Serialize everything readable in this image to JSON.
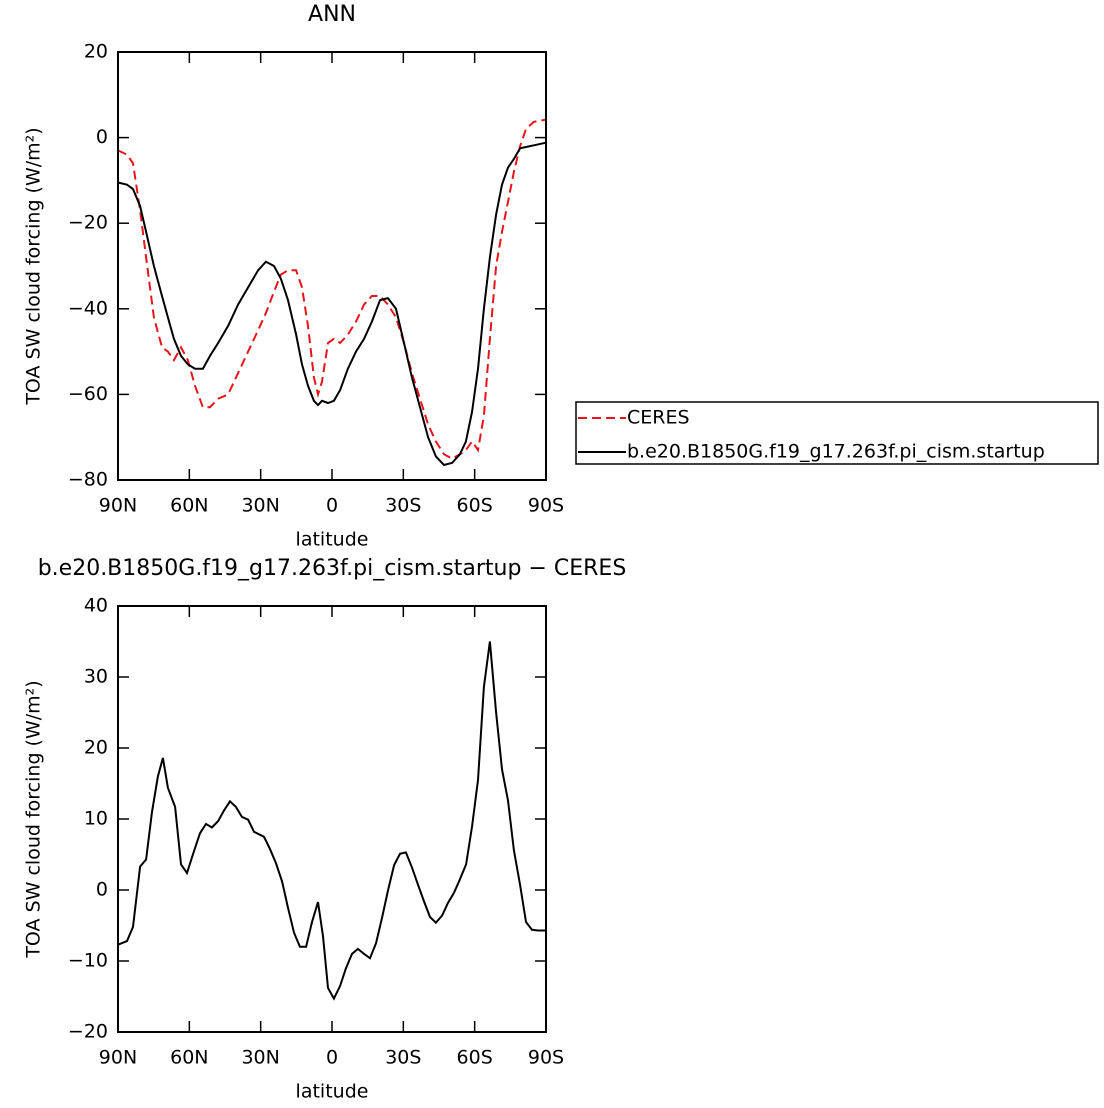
{
  "chart_data": [
    {
      "type": "line",
      "title": "ANN",
      "x_label": "latitude",
      "y_label": "TOA SW cloud forcing (W/m²)",
      "xlim": [
        90,
        -90
      ],
      "xticks": [
        {
          "value": 90,
          "label": "90N"
        },
        {
          "value": 60,
          "label": "60N"
        },
        {
          "value": 30,
          "label": "30N"
        },
        0,
        {
          "value": -30,
          "label": "30S"
        },
        {
          "value": -60,
          "label": "60S"
        },
        {
          "value": -90,
          "label": "90S"
        }
      ],
      "ylim": [
        -80,
        20
      ],
      "yticks": [
        {
          "value": -80,
          "label": "−80"
        },
        {
          "value": -60,
          "label": "−60"
        },
        {
          "value": -40,
          "label": "−40"
        },
        {
          "value": -20,
          "label": "−20"
        },
        0,
        20
      ],
      "legend": "outside right",
      "x": [
        90,
        86.2,
        83.7,
        80.7,
        78.2,
        74.9,
        71.5,
        69,
        66.5,
        63.5,
        60.6,
        57.6,
        54.3,
        51.3,
        47.9,
        43.7,
        39.5,
        35.3,
        31.1,
        27.8,
        24.4,
        21.5,
        18.5,
        15.1,
        12.6,
        10.1,
        7.6,
        5.9,
        4.2,
        1.7,
        -0.8,
        -3.4,
        -6.7,
        -10.1,
        -13.5,
        -16.8,
        -20.2,
        -23.5,
        -26.9,
        -30.3,
        -33.6,
        -37,
        -40.4,
        -43.7,
        -47.1,
        -50.5,
        -53.8,
        -56.3,
        -58.9,
        -61.4,
        -63.9,
        -66.4,
        -69,
        -71.5,
        -74,
        -76.5,
        -79.1,
        -81.6,
        -84.9,
        -90
      ],
      "series": [
        {
          "name": "CERES",
          "color": "#e8141a",
          "line_style": "dashed",
          "values": [
            -3,
            -4,
            -6,
            -17,
            -28,
            -42,
            -49,
            -50,
            -52,
            -49,
            -52,
            -58,
            -63,
            -63,
            -61,
            -60,
            -55,
            -50,
            -45,
            -41,
            -36,
            -32,
            -31,
            -31,
            -35,
            -44,
            -56,
            -60,
            -57,
            -48,
            -47,
            -48,
            -46,
            -43,
            -39,
            -37,
            -37,
            -39,
            -42,
            -48,
            -55,
            -61,
            -67,
            -71,
            -74,
            -75,
            -74,
            -73,
            -71,
            -73,
            -65,
            -47,
            -30,
            -22,
            -15,
            -8,
            -2,
            2,
            3.7,
            4.2
          ]
        },
        {
          "name": "b.e20.B1850G.f19_g17.263f.pi_cism.startup",
          "color": "#000000",
          "line_style": "solid",
          "values": [
            -10.5,
            -11,
            -12,
            -16,
            -22,
            -30,
            -37,
            -42,
            -47,
            -51,
            -53,
            -54,
            -54,
            -51,
            -48,
            -44,
            -39,
            -35,
            -31,
            -29,
            -30,
            -33,
            -38,
            -46,
            -53,
            -58,
            -61.5,
            -62.5,
            -61.5,
            -62,
            -61.5,
            -59,
            -54,
            -50,
            -47,
            -43,
            -38,
            -37.5,
            -40,
            -48,
            -56,
            -63,
            -70,
            -74.5,
            -76.5,
            -76,
            -74,
            -71,
            -64,
            -54,
            -40,
            -28,
            -18,
            -11,
            -7,
            -5,
            -2.5,
            -2.2,
            -1.8,
            -1.2
          ]
        }
      ]
    },
    {
      "type": "line",
      "title": "b.e20.B1850G.f19_g17.263f.pi_cism.startup − CERES",
      "x_label": "latitude",
      "y_label": "TOA SW cloud forcing (W/m²)",
      "xlim": [
        90,
        -90
      ],
      "xticks": [
        {
          "value": 90,
          "label": "90N"
        },
        {
          "value": 60,
          "label": "60N"
        },
        {
          "value": 30,
          "label": "30N"
        },
        0,
        {
          "value": -30,
          "label": "30S"
        },
        {
          "value": -60,
          "label": "60S"
        },
        {
          "value": -90,
          "label": "90S"
        }
      ],
      "ylim": [
        -20,
        40
      ],
      "yticks": [
        {
          "value": -20,
          "label": "−20"
        },
        {
          "value": -10,
          "label": "−10"
        },
        0,
        10,
        20,
        30,
        40
      ],
      "x": [
        90,
        86.2,
        83.7,
        80.7,
        78.2,
        75.7,
        73.2,
        71.1,
        69.0,
        66.0,
        63.5,
        61.0,
        58.5,
        55.5,
        53.0,
        50.5,
        47.9,
        45.4,
        42.9,
        40.4,
        37.9,
        35.3,
        32.8,
        28.6,
        26.1,
        23.6,
        21.0,
        18.5,
        16.0,
        13.5,
        10.9,
        8.4,
        5.9,
        3.8,
        1.7,
        -0.8,
        -3.4,
        -5.9,
        -8.4,
        -10.9,
        -13.5,
        -16.0,
        -18.5,
        -21.0,
        -23.6,
        -26.1,
        -28.6,
        -31.1,
        -33.6,
        -36.2,
        -38.7,
        -41.2,
        -43.7,
        -46.3,
        -48.8,
        -51.3,
        -53.8,
        -56.4,
        -58.9,
        -61.4,
        -63.9,
        -66.4,
        -69.0,
        -71.5,
        -74.0,
        -76.5,
        -79.1,
        -81.6,
        -84.1,
        -86.6,
        -90
      ],
      "values": [
        -7.7,
        -7.2,
        -5.2,
        3.3,
        4.3,
        11,
        16,
        18.6,
        14.4,
        11.7,
        3.6,
        2.4,
        5,
        8,
        9.3,
        8.8,
        9.7,
        11.2,
        12.5,
        11.7,
        10.3,
        9.9,
        8.2,
        7.5,
        5.8,
        3.8,
        1.2,
        -2.5,
        -6,
        -8,
        -8,
        -4.5,
        -1.7,
        -6.5,
        -13.8,
        -15.3,
        -13.5,
        -11,
        -9,
        -8.3,
        -9,
        -9.6,
        -7.5,
        -4,
        0,
        3.5,
        5.1,
        5.3,
        3.2,
        0.7,
        -1.6,
        -3.8,
        -4.6,
        -3.6,
        -1.8,
        -0.4,
        1.5,
        3.6,
        9,
        15.5,
        28.6,
        35,
        25,
        17,
        12.6,
        5.6,
        0.7,
        -4.5,
        -5.6,
        -5.7,
        -5.7
      ],
      "color": "#000000"
    }
  ]
}
